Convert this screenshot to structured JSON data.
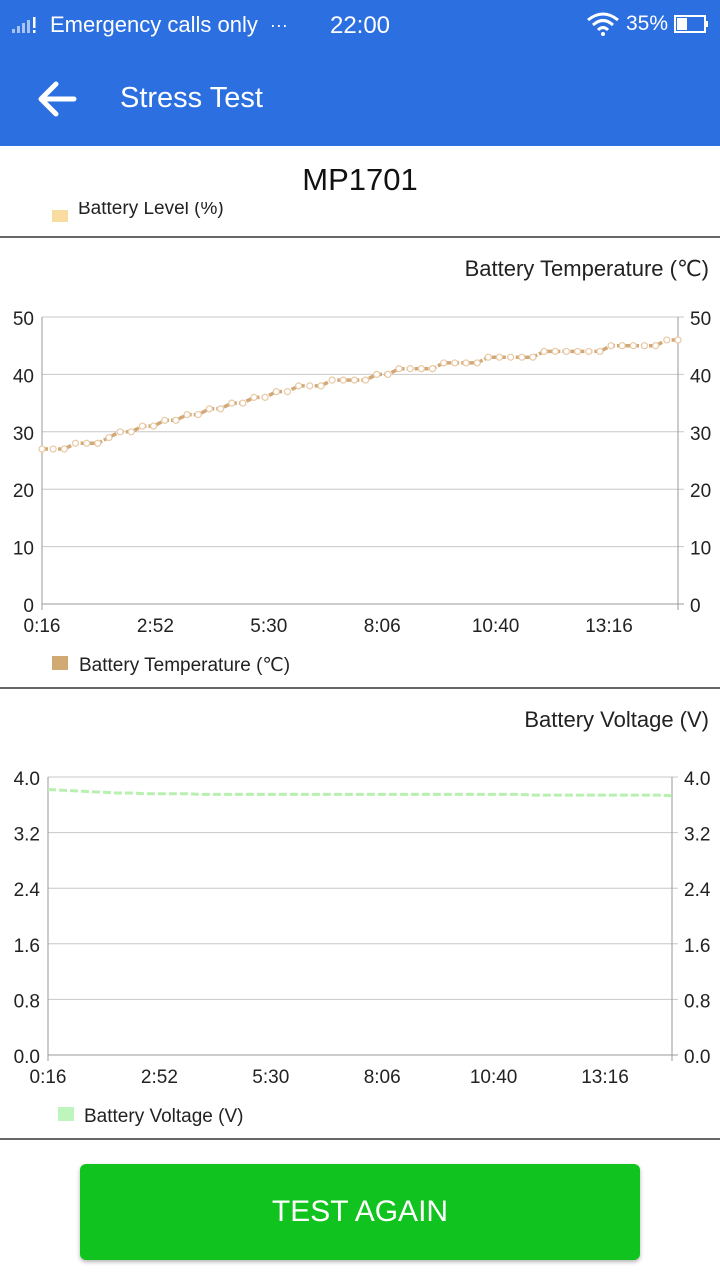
{
  "status_bar": {
    "carrier": "Emergency calls only",
    "more": "···",
    "time": "22:00",
    "battery": "35%",
    "signal_icon": "signal-icon",
    "wifi_icon": "wifi-icon",
    "battery_icon": "battery-icon"
  },
  "header": {
    "title": "Stress Test",
    "back_icon": "arrow-left-icon"
  },
  "device_name": "MP1701",
  "partial_legend": "Battery Level (%)",
  "colors": {
    "primary": "#2c6fe0",
    "temp_line": "#d2a878",
    "voltage_line": "#b8f0b0",
    "button": "#11c31e"
  },
  "charts": {
    "temperature": {
      "title": "Battery Temperature (℃)",
      "legend": "Battery Temperature (℃)",
      "y_ticks": [
        "50",
        "40",
        "30",
        "20",
        "10",
        "0"
      ],
      "x_ticks": [
        "0:16",
        "2:52",
        "5:30",
        "8:06",
        "10:40",
        "13:16"
      ]
    },
    "voltage": {
      "title": "Battery Voltage (V)",
      "legend": "Battery Voltage (V)",
      "y_ticks": [
        "4.0",
        "3.2",
        "2.4",
        "1.6",
        "0.8",
        "0.0"
      ],
      "x_ticks": [
        "0:16",
        "2:52",
        "5:30",
        "8:06",
        "10:40",
        "13:16"
      ]
    }
  },
  "chart_data": [
    {
      "type": "line",
      "title": "Battery Temperature (℃)",
      "ylim": [
        0,
        50
      ],
      "legend": "bottom-left",
      "grid": true,
      "series": [
        {
          "name": "Battery Temperature (℃)",
          "values": [
            27,
            27,
            27,
            28,
            28,
            28,
            29,
            30,
            30,
            31,
            31,
            32,
            32,
            33,
            33,
            34,
            34,
            35,
            35,
            36,
            36,
            37,
            37,
            38,
            38,
            38,
            39,
            39,
            39,
            39,
            40,
            40,
            41,
            41,
            41,
            41,
            42,
            42,
            42,
            42,
            43,
            43,
            43,
            43,
            43,
            44,
            44,
            44,
            44,
            44,
            44,
            45,
            45,
            45,
            45,
            45,
            46,
            46
          ]
        }
      ]
    },
    {
      "type": "line",
      "title": "Battery Voltage (V)",
      "ylim": [
        0,
        4.0
      ],
      "legend": "bottom-left",
      "grid": true,
      "series": [
        {
          "name": "Battery Voltage (V)",
          "values": [
            3.82,
            3.81,
            3.8,
            3.79,
            3.78,
            3.77,
            3.77,
            3.76,
            3.76,
            3.76,
            3.76,
            3.75,
            3.75,
            3.75,
            3.75,
            3.75,
            3.75,
            3.75,
            3.75,
            3.75,
            3.75,
            3.75,
            3.75,
            3.75,
            3.75,
            3.75,
            3.75,
            3.75,
            3.75,
            3.75,
            3.75,
            3.75,
            3.75,
            3.75,
            3.75,
            3.74,
            3.74,
            3.74,
            3.74,
            3.74,
            3.74,
            3.74,
            3.74,
            3.74,
            3.74,
            3.73
          ]
        }
      ]
    }
  ],
  "button": {
    "label": "TEST AGAIN"
  }
}
